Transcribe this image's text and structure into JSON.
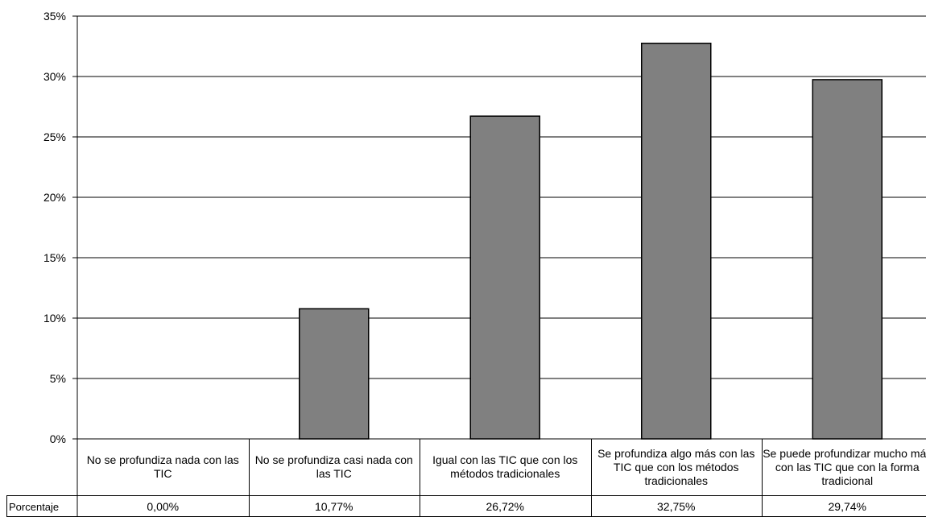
{
  "chart_data": {
    "type": "bar",
    "categories": [
      "No se profundiza nada con las TIC",
      "No se profundiza casi nada con las TIC",
      "Igual con las TIC que con los métodos tradicionales",
      "Se profundiza algo más con las TIC que con los métodos tradicionales",
      "Se puede profundizar mucho más con las TIC que con la forma tradicional"
    ],
    "values": [
      0.0,
      10.77,
      26.72,
      32.75,
      29.74
    ],
    "value_labels": [
      "0,00%",
      "10,77%",
      "26,72%",
      "32,75%",
      "29,74%"
    ],
    "row_label": "Porcentaje",
    "yticks": [
      "0%",
      "5%",
      "10%",
      "15%",
      "20%",
      "25%",
      "30%",
      "35%"
    ],
    "ylim": [
      0,
      35
    ],
    "grid": true,
    "bar_color": "#808080",
    "title": "",
    "xlabel": "",
    "ylabel": ""
  }
}
